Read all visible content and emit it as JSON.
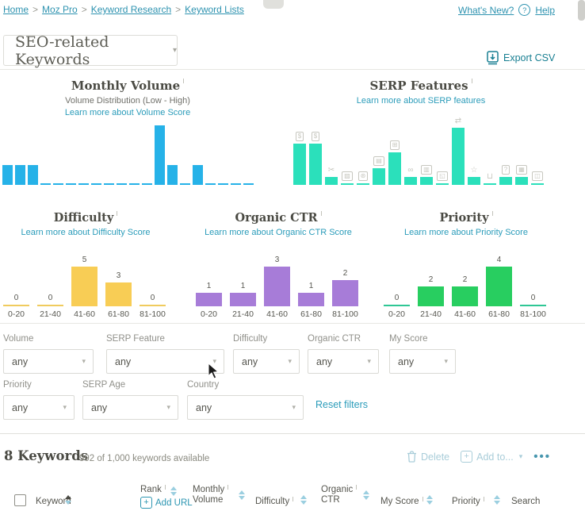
{
  "breadcrumb": {
    "items": [
      "Home",
      "Moz Pro",
      "Keyword Research",
      "Keyword Lists"
    ],
    "separator": ">"
  },
  "top_right": {
    "whats_new": "What's New?",
    "help": "Help",
    "question_glyph": "?"
  },
  "list_selector": {
    "value": "SEO-related Keywords"
  },
  "export": {
    "label": "Export CSV"
  },
  "icons": {
    "chevron_down": "▾",
    "more_dots": "•••",
    "plus": "+"
  },
  "colors": {
    "link_teal": "#2e93b0",
    "export_teal": "#187f92",
    "disabled_blue": "#a9cdd9",
    "bar_blue": "#26b2e8",
    "bar_mint": "#2be0bb",
    "bar_yellow": "#f8cd55",
    "bar_purple": "#a77cd8",
    "bar_green": "#28ce60"
  },
  "chart_data": [
    {
      "type": "bar",
      "title": "Monthly Volume",
      "subtitle": "Volume Distribution (Low - High)",
      "link": "Learn more about Volume Score",
      "color": "#26b2e8",
      "categories": [
        "vol-bucket-1",
        "vol-bucket-2",
        "vol-bucket-3",
        "vol-bucket-4",
        "vol-bucket-5",
        "vol-bucket-6",
        "vol-bucket-7",
        "vol-bucket-8",
        "vol-bucket-9",
        "vol-bucket-10",
        "vol-bucket-11",
        "vol-bucket-12",
        "vol-bucket-13",
        "vol-bucket-14",
        "vol-bucket-15",
        "vol-bucket-16",
        "vol-bucket-17",
        "vol-bucket-18",
        "vol-bucket-19",
        "vol-bucket-20"
      ],
      "values": [
        1,
        1,
        1,
        0,
        0,
        0,
        0,
        0,
        0,
        0,
        0,
        0,
        3,
        1,
        0,
        1,
        0,
        0,
        0,
        0
      ],
      "axis_labels_shown": false
    },
    {
      "type": "bar",
      "title": "SERP Features",
      "link": "Learn more about SERP features",
      "color": "#2be0bb",
      "values": [
        5,
        5,
        1,
        0,
        0,
        2,
        4,
        1,
        1,
        0,
        7,
        1,
        0,
        1,
        1,
        0
      ],
      "icons": [
        {
          "name": "ads-top",
          "glyph": "$",
          "boxed": true
        },
        {
          "name": "ads-bottom",
          "glyph": "$",
          "boxed": true
        },
        {
          "name": "sitelinks",
          "glyph": "✂",
          "boxed": false
        },
        {
          "name": "image",
          "glyph": "▨",
          "boxed": true
        },
        {
          "name": "knowledge-card",
          "glyph": "⊛",
          "boxed": true
        },
        {
          "name": "image-pack",
          "glyph": "▤",
          "boxed": true
        },
        {
          "name": "local-pack",
          "glyph": "⊞",
          "boxed": true
        },
        {
          "name": "link",
          "glyph": "∞",
          "boxed": false
        },
        {
          "name": "news",
          "glyph": "▥",
          "boxed": true
        },
        {
          "name": "shopping-bag",
          "glyph": "◱",
          "boxed": true
        },
        {
          "name": "related-searches",
          "glyph": "⇄",
          "boxed": false
        },
        {
          "name": "reviews",
          "glyph": "☆",
          "boxed": false
        },
        {
          "name": "shopping-cart",
          "glyph": "⊔",
          "boxed": false
        },
        {
          "name": "questions",
          "glyph": "?",
          "boxed": true
        },
        {
          "name": "table",
          "glyph": "▦",
          "boxed": true
        },
        {
          "name": "video",
          "glyph": "◫",
          "boxed": true
        }
      ],
      "axis_labels_shown": false
    },
    {
      "type": "bar",
      "title": "Difficulty",
      "link": "Learn more about Difficulty Score",
      "color": "#f8cd55",
      "zero_line_color": "#f0cb5e",
      "categories": [
        "0-20",
        "21-40",
        "41-60",
        "61-80",
        "81-100"
      ],
      "values": [
        0,
        0,
        5,
        3,
        0
      ],
      "value_labels_shown": true
    },
    {
      "type": "bar",
      "title": "Organic CTR",
      "link": "Learn more about Organic CTR Score",
      "color": "#a77cd8",
      "zero_line_color": "#b48fd9",
      "categories": [
        "0-20",
        "21-40",
        "41-60",
        "61-80",
        "81-100"
      ],
      "values": [
        1,
        1,
        3,
        1,
        2
      ],
      "value_labels_shown": true
    },
    {
      "type": "bar",
      "title": "Priority",
      "link": "Learn more about Priority Score",
      "color": "#28ce60",
      "zero_line_color": "#2fc795",
      "categories": [
        "0-20",
        "21-40",
        "41-60",
        "61-80",
        "81-100"
      ],
      "values": [
        0,
        2,
        2,
        4,
        0
      ],
      "value_labels_shown": true
    }
  ],
  "filters": {
    "row1": [
      {
        "label": "Volume",
        "value": "any"
      },
      {
        "label": "SERP Feature",
        "value": "any"
      },
      {
        "label": "Difficulty",
        "value": "any"
      },
      {
        "label": "Organic CTR",
        "value": "any"
      },
      {
        "label": "My Score",
        "value": "any"
      }
    ],
    "row2": [
      {
        "label": "Priority",
        "value": "any"
      },
      {
        "label": "SERP Age",
        "value": "any"
      },
      {
        "label": "Country",
        "value": "any"
      }
    ],
    "reset_label": "Reset filters"
  },
  "summary": {
    "count_label": "8 Keywords",
    "availability": "992 of 1,000 keywords available",
    "delete_label": "Delete",
    "add_to_label": "Add to..."
  },
  "table": {
    "columns": [
      {
        "label": "Keyword"
      },
      {
        "label": "Rank",
        "sublink": "Add URL"
      },
      {
        "label": "Monthly",
        "label2": "Volume"
      },
      {
        "label": "Difficulty"
      },
      {
        "label": "Organic",
        "label2": "CTR"
      },
      {
        "label": "My Score"
      },
      {
        "label": "Priority"
      },
      {
        "label": "Search"
      }
    ]
  }
}
